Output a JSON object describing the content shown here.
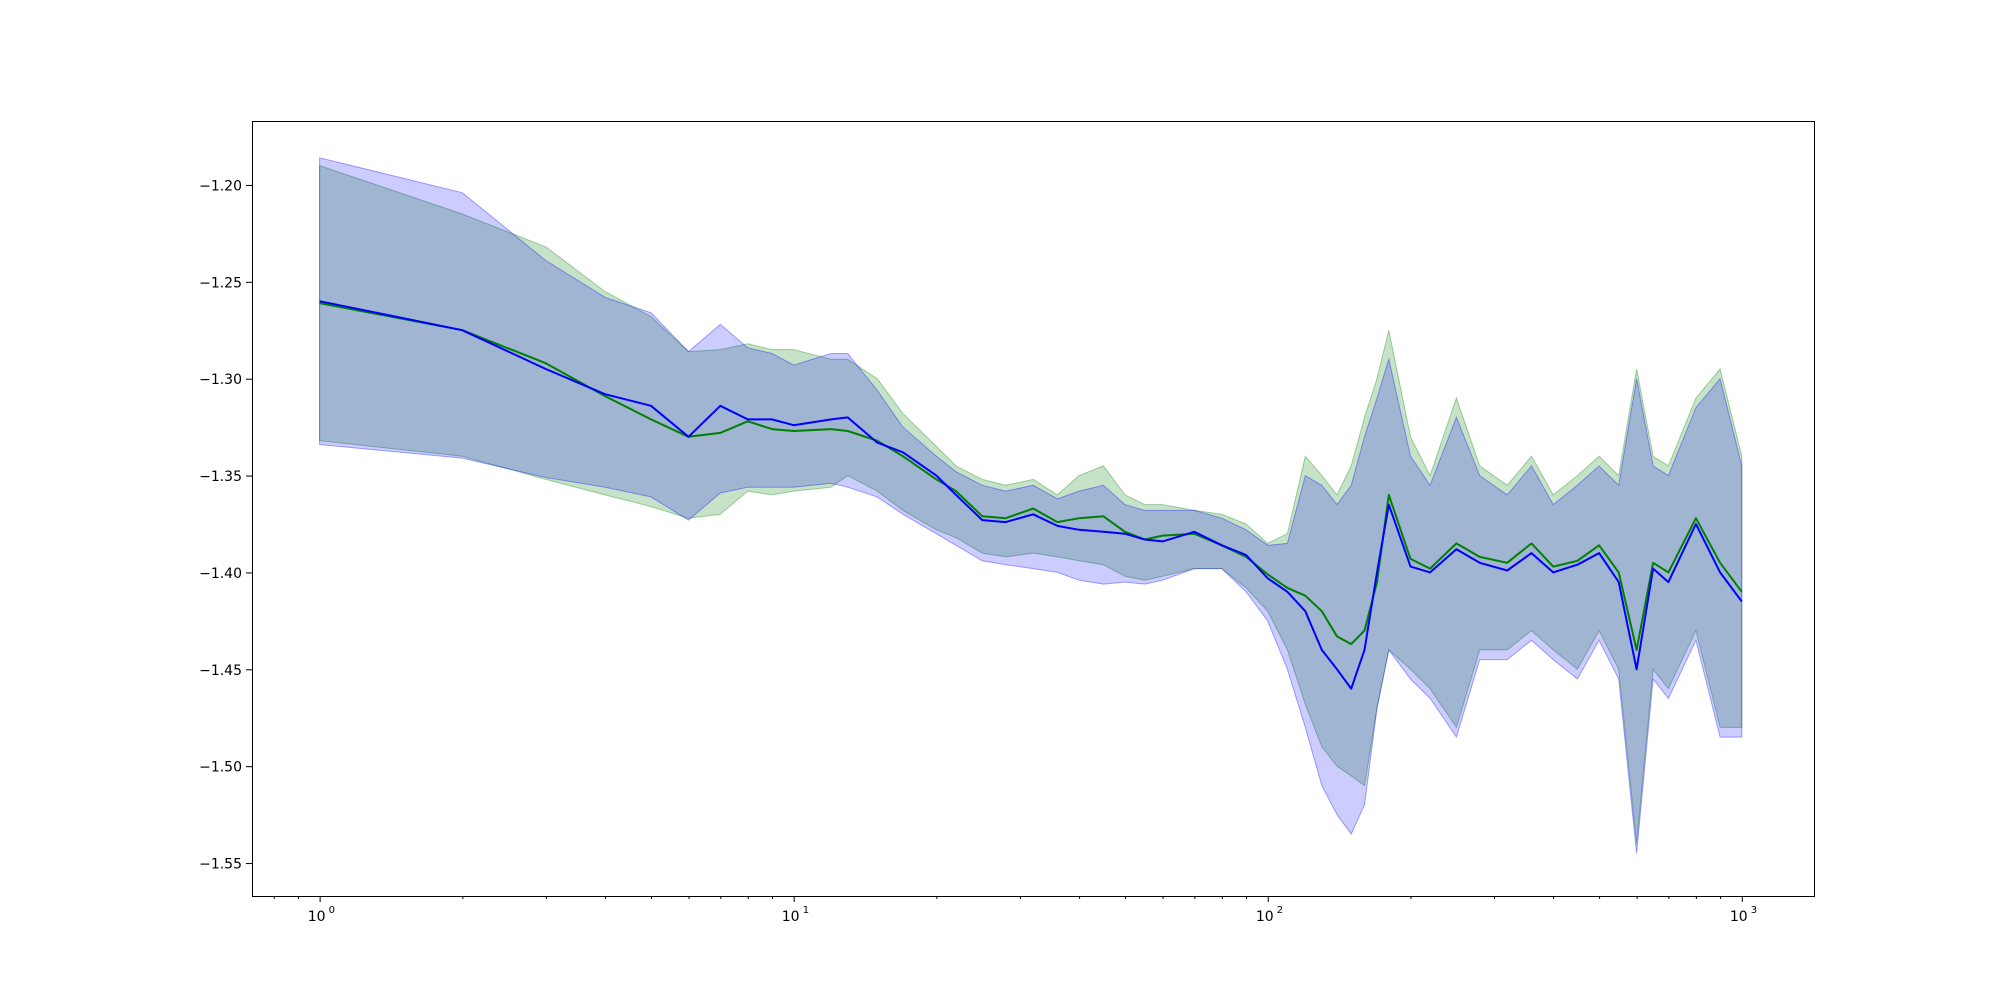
{
  "chart_data": {
    "type": "line",
    "title": "",
    "xlabel": "",
    "ylabel": "",
    "x_scale": "log",
    "xlim": [
      0.72,
      1420
    ],
    "ylim": [
      -1.567,
      -1.167
    ],
    "grid": false,
    "legend": "none",
    "x_ticks": [
      {
        "value": 1,
        "base": "10",
        "exp": "0"
      },
      {
        "value": 10,
        "base": "10",
        "exp": "1"
      },
      {
        "value": 100,
        "base": "10",
        "exp": "2"
      },
      {
        "value": 1000,
        "base": "10",
        "exp": "3"
      }
    ],
    "y_ticks": [
      {
        "value": -1.2,
        "label": "−1.20"
      },
      {
        "value": -1.25,
        "label": "−1.25"
      },
      {
        "value": -1.3,
        "label": "−1.30"
      },
      {
        "value": -1.35,
        "label": "−1.35"
      },
      {
        "value": -1.4,
        "label": "−1.40"
      },
      {
        "value": -1.45,
        "label": "−1.45"
      },
      {
        "value": -1.5,
        "label": "−1.50"
      },
      {
        "value": -1.55,
        "label": "−1.55"
      }
    ],
    "x": [
      1,
      2,
      3,
      4,
      5,
      6,
      7,
      8,
      9,
      10,
      12,
      13,
      15,
      17,
      20,
      22,
      25,
      28,
      32,
      36,
      40,
      45,
      50,
      55,
      60,
      70,
      80,
      90,
      100,
      110,
      120,
      130,
      140,
      150,
      160,
      170,
      180,
      200,
      220,
      250,
      280,
      320,
      360,
      400,
      450,
      500,
      550,
      600,
      650,
      700,
      800,
      900,
      1000
    ],
    "series": [
      {
        "color": "#008000",
        "band_color": "#008000",
        "band_alpha": 0.22,
        "values": [
          -1.261,
          -1.275,
          -1.292,
          -1.309,
          -1.321,
          -1.33,
          -1.328,
          -1.322,
          -1.326,
          -1.327,
          -1.326,
          -1.327,
          -1.332,
          -1.34,
          -1.352,
          -1.358,
          -1.371,
          -1.372,
          -1.367,
          -1.374,
          -1.372,
          -1.371,
          -1.379,
          -1.383,
          -1.381,
          -1.38,
          -1.386,
          -1.392,
          -1.401,
          -1.408,
          -1.412,
          -1.42,
          -1.433,
          -1.437,
          -1.43,
          -1.405,
          -1.36,
          -1.393,
          -1.398,
          -1.385,
          -1.392,
          -1.395,
          -1.385,
          -1.397,
          -1.394,
          -1.386,
          -1.4,
          -1.44,
          -1.395,
          -1.4,
          -1.372,
          -1.395,
          -1.41
        ],
        "upper": [
          -1.19,
          -1.215,
          -1.232,
          -1.255,
          -1.268,
          -1.286,
          -1.285,
          -1.282,
          -1.285,
          -1.285,
          -1.29,
          -1.29,
          -1.3,
          -1.318,
          -1.335,
          -1.345,
          -1.352,
          -1.355,
          -1.352,
          -1.36,
          -1.35,
          -1.345,
          -1.36,
          -1.365,
          -1.365,
          -1.368,
          -1.37,
          -1.375,
          -1.385,
          -1.38,
          -1.34,
          -1.35,
          -1.36,
          -1.345,
          -1.32,
          -1.3,
          -1.275,
          -1.33,
          -1.35,
          -1.31,
          -1.345,
          -1.355,
          -1.34,
          -1.36,
          -1.35,
          -1.34,
          -1.35,
          -1.295,
          -1.34,
          -1.345,
          -1.31,
          -1.295,
          -1.34
        ],
        "lower": [
          -1.332,
          -1.34,
          -1.352,
          -1.36,
          -1.366,
          -1.372,
          -1.37,
          -1.358,
          -1.36,
          -1.358,
          -1.356,
          -1.35,
          -1.358,
          -1.368,
          -1.378,
          -1.382,
          -1.39,
          -1.392,
          -1.39,
          -1.392,
          -1.394,
          -1.396,
          -1.402,
          -1.404,
          -1.402,
          -1.398,
          -1.398,
          -1.408,
          -1.42,
          -1.44,
          -1.468,
          -1.49,
          -1.5,
          -1.505,
          -1.51,
          -1.47,
          -1.44,
          -1.45,
          -1.46,
          -1.48,
          -1.44,
          -1.44,
          -1.43,
          -1.44,
          -1.45,
          -1.43,
          -1.45,
          -1.54,
          -1.45,
          -1.46,
          -1.43,
          -1.48,
          -1.48
        ]
      },
      {
        "color": "#0000ff",
        "band_color": "#0000ff",
        "band_alpha": 0.2,
        "values": [
          -1.26,
          -1.275,
          -1.295,
          -1.308,
          -1.314,
          -1.33,
          -1.314,
          -1.321,
          -1.321,
          -1.324,
          -1.321,
          -1.32,
          -1.333,
          -1.338,
          -1.35,
          -1.36,
          -1.373,
          -1.374,
          -1.37,
          -1.376,
          -1.378,
          -1.379,
          -1.38,
          -1.383,
          -1.384,
          -1.379,
          -1.386,
          -1.391,
          -1.403,
          -1.41,
          -1.42,
          -1.44,
          -1.45,
          -1.46,
          -1.44,
          -1.4,
          -1.365,
          -1.397,
          -1.4,
          -1.388,
          -1.395,
          -1.399,
          -1.39,
          -1.4,
          -1.396,
          -1.39,
          -1.405,
          -1.45,
          -1.398,
          -1.405,
          -1.375,
          -1.4,
          -1.415
        ],
        "upper": [
          -1.186,
          -1.204,
          -1.239,
          -1.258,
          -1.266,
          -1.286,
          -1.272,
          -1.284,
          -1.287,
          -1.293,
          -1.287,
          -1.287,
          -1.306,
          -1.325,
          -1.34,
          -1.348,
          -1.355,
          -1.358,
          -1.355,
          -1.362,
          -1.358,
          -1.355,
          -1.365,
          -1.368,
          -1.368,
          -1.368,
          -1.372,
          -1.378,
          -1.386,
          -1.385,
          -1.35,
          -1.355,
          -1.365,
          -1.355,
          -1.33,
          -1.31,
          -1.29,
          -1.34,
          -1.355,
          -1.32,
          -1.35,
          -1.36,
          -1.345,
          -1.365,
          -1.355,
          -1.345,
          -1.355,
          -1.3,
          -1.345,
          -1.35,
          -1.315,
          -1.3,
          -1.345
        ],
        "lower": [
          -1.334,
          -1.341,
          -1.351,
          -1.356,
          -1.361,
          -1.373,
          -1.359,
          -1.356,
          -1.356,
          -1.356,
          -1.354,
          -1.356,
          -1.361,
          -1.37,
          -1.38,
          -1.386,
          -1.394,
          -1.396,
          -1.398,
          -1.4,
          -1.404,
          -1.406,
          -1.405,
          -1.406,
          -1.404,
          -1.398,
          -1.398,
          -1.41,
          -1.425,
          -1.45,
          -1.48,
          -1.51,
          -1.525,
          -1.535,
          -1.52,
          -1.47,
          -1.44,
          -1.455,
          -1.465,
          -1.485,
          -1.445,
          -1.445,
          -1.435,
          -1.445,
          -1.455,
          -1.435,
          -1.455,
          -1.545,
          -1.455,
          -1.465,
          -1.435,
          -1.485,
          -1.485
        ]
      }
    ]
  }
}
